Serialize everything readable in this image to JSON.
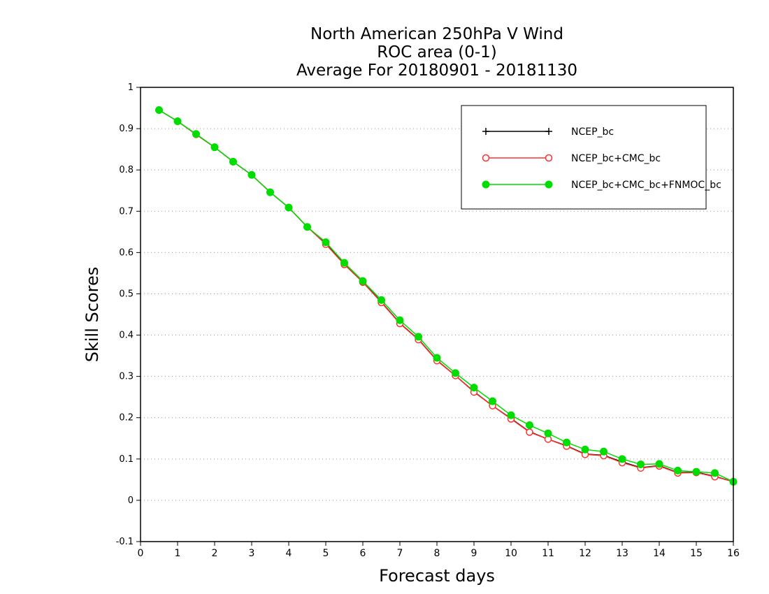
{
  "chart_data": {
    "type": "line",
    "title_lines": [
      "North American 250hPa V Wind",
      "ROC area (0-1)",
      "Average For 20180901 - 20181130"
    ],
    "xlabel": "Forecast days",
    "ylabel": "Skill Scores",
    "xlim": [
      0,
      16
    ],
    "ylim": [
      -0.1,
      1
    ],
    "xticks": [
      0,
      1,
      2,
      3,
      4,
      5,
      6,
      7,
      8,
      9,
      10,
      11,
      12,
      13,
      14,
      15,
      16
    ],
    "xtick_labels": [
      "0",
      "1",
      "2",
      "3",
      "4",
      "5",
      "6",
      "7",
      "8",
      "9",
      "10",
      "11",
      "12",
      "13",
      "14",
      "15",
      "16"
    ],
    "yticks": [
      -0.1,
      0,
      0.1,
      0.2,
      0.3,
      0.4,
      0.5,
      0.6,
      0.7,
      0.8,
      0.9,
      1
    ],
    "ytick_labels": [
      "-0.1",
      "0",
      "0.1",
      "0.2",
      "0.3",
      "0.4",
      "0.5",
      "0.6",
      "0.7",
      "0.8",
      "0.9",
      "1"
    ],
    "grid": "horizontal dotted",
    "legend_position": "top-right",
    "x": [
      0.5,
      1,
      1.5,
      2,
      2.5,
      3,
      3.5,
      4,
      4.5,
      5,
      5.5,
      6,
      6.5,
      7,
      7.5,
      8,
      8.5,
      9,
      9.5,
      10,
      10.5,
      11,
      11.5,
      12,
      12.5,
      13,
      13.5,
      14,
      14.5,
      15,
      15.5,
      16
    ],
    "series": [
      {
        "name": "NCEP_bc",
        "color": "#000000",
        "marker": "plus",
        "values": [
          0.945,
          0.918,
          0.886,
          0.855,
          0.82,
          0.788,
          0.746,
          0.709,
          0.662,
          0.622,
          0.572,
          0.529,
          0.48,
          0.429,
          0.39,
          0.339,
          0.302,
          0.263,
          0.229,
          0.198,
          0.166,
          0.148,
          0.132,
          0.112,
          0.109,
          0.093,
          0.079,
          0.084,
          0.067,
          0.068,
          0.058,
          0.045
        ]
      },
      {
        "name": "NCEP_bc+CMC_bc",
        "color": "#ff3030",
        "marker": "open-circle",
        "values": [
          0.945,
          0.918,
          0.886,
          0.855,
          0.82,
          0.788,
          0.746,
          0.709,
          0.662,
          0.62,
          0.571,
          0.528,
          0.479,
          0.428,
          0.389,
          0.338,
          0.302,
          0.262,
          0.229,
          0.197,
          0.165,
          0.148,
          0.131,
          0.111,
          0.108,
          0.091,
          0.078,
          0.083,
          0.066,
          0.067,
          0.057,
          0.045
        ]
      },
      {
        "name": "NCEP_bc+CMC_bc+FNMOC_bc",
        "color": "#00dd00",
        "marker": "filled-circle",
        "values": [
          0.945,
          0.918,
          0.887,
          0.855,
          0.82,
          0.788,
          0.746,
          0.709,
          0.662,
          0.625,
          0.575,
          0.531,
          0.485,
          0.436,
          0.396,
          0.345,
          0.308,
          0.273,
          0.24,
          0.206,
          0.182,
          0.162,
          0.14,
          0.123,
          0.118,
          0.1,
          0.087,
          0.088,
          0.072,
          0.069,
          0.066,
          0.045
        ]
      }
    ]
  }
}
